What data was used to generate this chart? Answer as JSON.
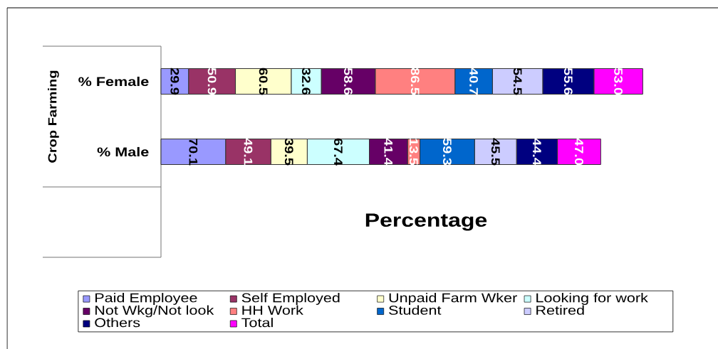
{
  "chart_data": {
    "type": "bar",
    "orientation": "horizontal",
    "stacked": true,
    "xlabel": "Percentage",
    "ylabel": "Crop Farming",
    "categories": [
      "% Female",
      "% Male"
    ],
    "series": [
      {
        "name": "Paid Employee",
        "color": "#9999ff",
        "values": [
          29.9,
          70.1
        ],
        "value_labels": [
          "29.9",
          "70.1"
        ]
      },
      {
        "name": "Self Employed",
        "color": "#993366",
        "values": [
          50.9,
          49.1
        ],
        "value_labels": [
          "50.9",
          "49.1"
        ]
      },
      {
        "name": "Unpaid Farm Wker",
        "color": "#ffffcc",
        "values": [
          60.5,
          39.5
        ],
        "value_labels": [
          "60.5",
          "39.5"
        ]
      },
      {
        "name": "Looking for work",
        "color": "#ccffff",
        "values": [
          32.6,
          67.4
        ],
        "value_labels": [
          "32.6",
          "67.4"
        ]
      },
      {
        "name": "Not Wkg/Not look",
        "color": "#660066",
        "values": [
          58.6,
          41.4
        ],
        "value_labels": [
          "58.6",
          "41.4"
        ]
      },
      {
        "name": "HH Work",
        "color": "#ff8080",
        "values": [
          86.5,
          13.5
        ],
        "value_labels": [
          "86.5",
          "13.5"
        ]
      },
      {
        "name": "Student",
        "color": "#0066cc",
        "values": [
          40.7,
          59.3
        ],
        "value_labels": [
          "40.7",
          "59.3"
        ]
      },
      {
        "name": "Retired",
        "color": "#ccccff",
        "values": [
          54.5,
          45.5
        ],
        "value_labels": [
          "54.5",
          "45.5"
        ]
      },
      {
        "name": "Others",
        "color": "#000080",
        "values": [
          55.6,
          44.4
        ],
        "value_labels": [
          "55.6",
          "44.4"
        ]
      },
      {
        "name": "Total",
        "color": "#ff00ff",
        "values": [
          53.0,
          47.0
        ],
        "value_labels": [
          "53.0",
          "47.0"
        ]
      }
    ],
    "legend": "bottom",
    "tick_labels": "y"
  }
}
